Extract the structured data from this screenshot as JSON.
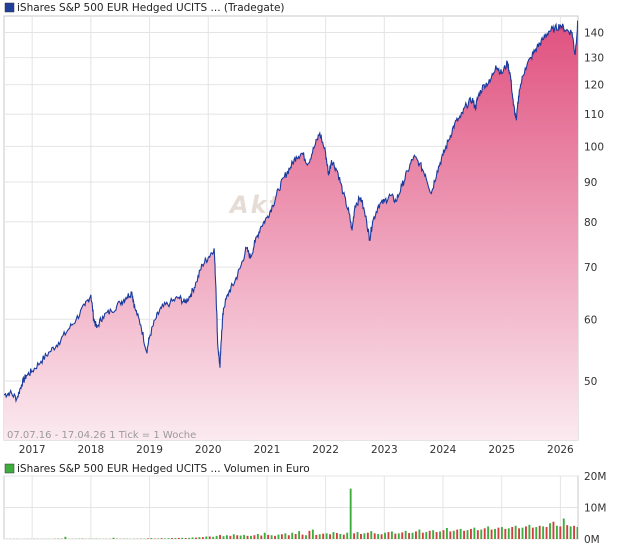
{
  "chart_data": [
    {
      "type": "area",
      "legend_label": "iShares S&P 500 EUR Hedged UCITS ... (Tradegate)",
      "legend_color": "#1f3f9a",
      "line_color": "#1a3a9c",
      "fill_top_color": "#e0507f",
      "fill_bottom_color": "#fbeaf0",
      "watermark": "Aktien",
      "footer_note": "07.07.16 - 17.04.26   1 Tick = 1 Woche",
      "y_scale": "log",
      "ylim": [
        42,
        147
      ],
      "xlim": [
        2016.52,
        2026.3
      ],
      "y_ticks": [
        50,
        60,
        70,
        80,
        90,
        100,
        110,
        120,
        130,
        140
      ],
      "x_ticks": [
        "2017",
        "2018",
        "2019",
        "2020",
        "2021",
        "2022",
        "2023",
        "2024",
        "2025",
        "2026"
      ],
      "grid": true,
      "series": [
        {
          "x": [
            2016.52,
            2016.62,
            2016.74,
            2016.82,
            2016.9,
            2017.0,
            2017.15,
            2017.3,
            2017.45,
            2017.6,
            2017.75,
            2017.9,
            2018.0,
            2018.05,
            2018.1,
            2018.2,
            2018.35,
            2018.5,
            2018.6,
            2018.7,
            2018.75,
            2018.85,
            2018.95,
            2019.0,
            2019.1,
            2019.2,
            2019.35,
            2019.5,
            2019.6,
            2019.7,
            2019.8,
            2019.9,
            2020.0,
            2020.1,
            2020.13,
            2020.16,
            2020.2,
            2020.23,
            2020.26,
            2020.35,
            2020.45,
            2020.55,
            2020.65,
            2020.72,
            2020.8,
            2020.9,
            2021.0,
            2021.1,
            2021.2,
            2021.3,
            2021.4,
            2021.5,
            2021.6,
            2021.7,
            2021.8,
            2021.9,
            2022.0,
            2022.05,
            2022.1,
            2022.2,
            2022.3,
            2022.4,
            2022.45,
            2022.5,
            2022.6,
            2022.7,
            2022.75,
            2022.8,
            2022.9,
            2023.0,
            2023.1,
            2023.2,
            2023.3,
            2023.4,
            2023.5,
            2023.6,
            2023.7,
            2023.8,
            2023.9,
            2024.0,
            2024.1,
            2024.2,
            2024.3,
            2024.4,
            2024.5,
            2024.55,
            2024.6,
            2024.7,
            2024.8,
            2024.9,
            2025.0,
            2025.1,
            2025.15,
            2025.2,
            2025.25,
            2025.3,
            2025.4,
            2025.5,
            2025.6,
            2025.7,
            2025.8,
            2025.9,
            2026.0,
            2026.1,
            2026.2,
            2026.25,
            2026.3
          ],
          "values": [
            48.0,
            48.3,
            47.5,
            49.5,
            50.8,
            51.5,
            53.0,
            54.5,
            56.0,
            58.0,
            60.0,
            62.5,
            64.5,
            60.0,
            58.5,
            60.5,
            61.5,
            63.0,
            64.0,
            65.0,
            62.0,
            59.0,
            54.5,
            57.0,
            60.0,
            62.0,
            63.0,
            64.0,
            63.0,
            64.5,
            67.0,
            70.5,
            72.0,
            74.0,
            66.0,
            56.0,
            52.0,
            58.0,
            62.0,
            65.0,
            67.0,
            70.0,
            74.0,
            72.0,
            75.5,
            79.0,
            81.0,
            84.0,
            88.0,
            91.5,
            94.0,
            97.0,
            98.0,
            95.0,
            99.5,
            104.0,
            98.0,
            92.0,
            96.0,
            93.0,
            87.0,
            82.0,
            78.0,
            84.0,
            86.0,
            80.0,
            76.0,
            80.0,
            84.0,
            85.0,
            86.5,
            85.0,
            89.0,
            93.0,
            97.0,
            95.0,
            92.0,
            87.0,
            93.0,
            97.5,
            102.0,
            107.0,
            109.0,
            113.0,
            115.0,
            112.0,
            116.0,
            120.0,
            121.0,
            127.0,
            124.0,
            128.0,
            123.0,
            113.0,
            108.0,
            118.0,
            126.0,
            130.0,
            134.0,
            137.0,
            140.5,
            141.5,
            143.0,
            141.0,
            140.0,
            131.0,
            145.0
          ]
        }
      ]
    },
    {
      "type": "bar",
      "legend_label": "iShares S&P 500 EUR Hedged UCITS ... Volumen in Euro",
      "legend_color": "#3dae3d",
      "ylim": [
        0,
        20
      ],
      "y_unit": "M",
      "y_ticks": [
        "20M",
        "10M",
        "0M"
      ],
      "grid": true,
      "series": [
        {
          "name": "up_volume",
          "color": "#3dae3d",
          "values": [
            0.05,
            0.0,
            0.06,
            0.0,
            0.03,
            0.05,
            0.0,
            0.04,
            0.08,
            0.0,
            0.06,
            0.0,
            0.05,
            0.03,
            0.0,
            0.12,
            0.0,
            0.7,
            0.05,
            0.0,
            0.08,
            0.1,
            0.0,
            0.05,
            0.0,
            0.07,
            0.1,
            0.0,
            0.05,
            0.06,
            0.0,
            0.4,
            0.0,
            0.08,
            0.0,
            0.1,
            0.06,
            0.0,
            0.09,
            0.0,
            0.12,
            0.0,
            0.3,
            0.0,
            0.15,
            0.0,
            0.2,
            0.25,
            0.0,
            0.3,
            0.0,
            0.4,
            0.0,
            0.35,
            0.5,
            0.0,
            0.6,
            0.0,
            0.8,
            0.0,
            0.7,
            1.0,
            0.0,
            0.9,
            1.2,
            0.0,
            1.5,
            0.0,
            1.1,
            1.3,
            0.0,
            1.0,
            0.0,
            1.6,
            0.0,
            2.0,
            0.0,
            1.2,
            0.0,
            1.4,
            0.0,
            1.8,
            0.0,
            2.0,
            0.0,
            2.5,
            0.0,
            1.2,
            0.0,
            3.0,
            0.0,
            1.5,
            0.0,
            1.8,
            0.0,
            2.2,
            0.0,
            1.6,
            0.0,
            2.0,
            16.0,
            0.0,
            2.2,
            0.0,
            1.8,
            0.0,
            2.5,
            0.0,
            1.6,
            0.0,
            2.0,
            0.0,
            2.4,
            0.0,
            1.8,
            0.0,
            2.6,
            0.0,
            2.0,
            0.0,
            3.0,
            0.0,
            2.2,
            0.0,
            2.8,
            0.0,
            2.4,
            0.0,
            3.5,
            0.0,
            2.6,
            0.0,
            3.2,
            0.0,
            2.8,
            0.0,
            3.6,
            0.0,
            3.0,
            0.0,
            4.0,
            0.0,
            3.2,
            0.0,
            3.8,
            0.0,
            3.4,
            0.0,
            4.2,
            0.0,
            3.6,
            0.0,
            4.5,
            0.0,
            3.8,
            0.0,
            4.0,
            0.0,
            5.0,
            0.0,
            4.2,
            0.0,
            6.5,
            0.0,
            4.0,
            0.0,
            3.8
          ]
        },
        {
          "name": "down_volume",
          "color": "#d04040",
          "values": [
            0.0,
            0.04,
            0.0,
            0.05,
            0.0,
            0.0,
            0.06,
            0.0,
            0.0,
            0.05,
            0.0,
            0.04,
            0.0,
            0.0,
            0.08,
            0.0,
            0.1,
            0.0,
            0.0,
            0.06,
            0.0,
            0.0,
            0.12,
            0.0,
            0.07,
            0.0,
            0.0,
            0.05,
            0.0,
            0.0,
            0.06,
            0.0,
            0.1,
            0.0,
            0.08,
            0.0,
            0.0,
            0.07,
            0.0,
            0.09,
            0.0,
            0.2,
            0.0,
            0.15,
            0.0,
            0.25,
            0.0,
            0.0,
            0.3,
            0.0,
            0.35,
            0.0,
            0.3,
            0.0,
            0.0,
            0.45,
            0.0,
            0.6,
            0.0,
            0.8,
            0.0,
            0.0,
            1.3,
            0.0,
            0.0,
            1.0,
            0.0,
            1.2,
            0.0,
            0.0,
            1.0,
            0.0,
            1.2,
            0.0,
            1.1,
            0.0,
            1.3,
            0.0,
            1.0,
            0.0,
            1.5,
            0.0,
            1.2,
            0.0,
            1.6,
            0.0,
            1.4,
            0.0,
            2.6,
            0.0,
            1.3,
            0.0,
            1.7,
            0.0,
            1.5,
            0.0,
            1.9,
            0.0,
            1.4,
            0.0,
            0.0,
            1.8,
            0.0,
            1.6,
            0.0,
            2.0,
            0.0,
            1.8,
            0.0,
            1.5,
            0.0,
            2.2,
            0.0,
            1.7,
            0.0,
            2.1,
            0.0,
            1.9,
            0.0,
            2.4,
            0.0,
            2.0,
            0.0,
            2.6,
            0.0,
            2.2,
            0.0,
            2.8,
            0.0,
            2.4,
            0.0,
            3.0,
            0.0,
            2.6,
            0.0,
            3.2,
            0.0,
            2.8,
            0.0,
            3.4,
            0.0,
            3.0,
            0.0,
            3.6,
            0.0,
            3.2,
            0.0,
            3.8,
            0.0,
            3.4,
            0.0,
            4.0,
            0.0,
            3.6,
            0.0,
            4.2,
            0.0,
            3.8,
            0.0,
            5.5,
            0.0,
            4.0,
            0.0,
            4.4,
            0.0,
            4.2,
            0.0,
            3.6,
            0.0
          ]
        }
      ]
    }
  ]
}
